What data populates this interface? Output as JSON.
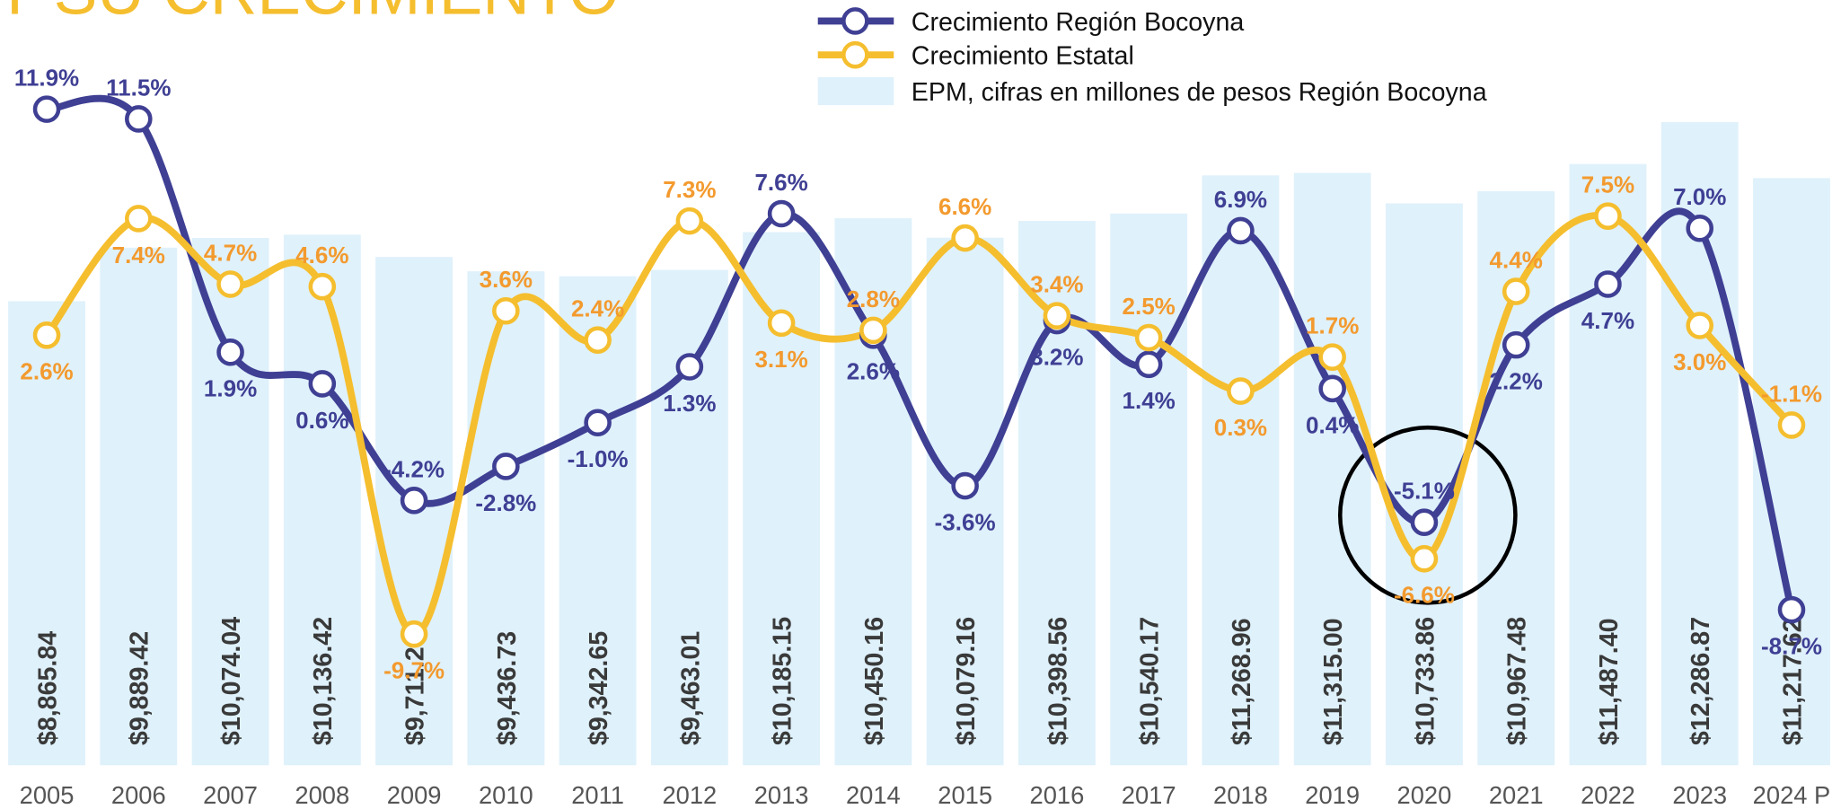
{
  "chart_data": {
    "type": "combo",
    "title": "Y SU CRECIMIENTO",
    "categories": [
      "2005",
      "2006",
      "2007",
      "2008",
      "2009",
      "2010",
      "2011",
      "2012",
      "2013",
      "2014",
      "2015",
      "2016",
      "2017",
      "2018",
      "2019",
      "2020",
      "2021",
      "2022",
      "2023",
      "2024 P"
    ],
    "series": [
      {
        "name": "Crecimiento Región Bocoyna",
        "type": "line",
        "color": "#3f3f94",
        "label_color": "#3f3f94",
        "values": [
          11.9,
          11.5,
          1.9,
          0.6,
          -4.2,
          -2.8,
          -1.0,
          1.3,
          7.6,
          2.6,
          -3.6,
          3.2,
          1.4,
          6.9,
          0.4,
          -5.1,
          2.2,
          4.7,
          7.0,
          -8.7
        ],
        "value_labels": [
          "11.9%",
          "11.5%",
          "1.9%",
          "0.6%",
          "-4.2%",
          "-2.8%",
          "-1.0%",
          "1.3%",
          "7.6%",
          "2.6%",
          "-3.6%",
          "3.2%",
          "1.4%",
          "6.9%",
          "0.4%",
          "-5.1%",
          "2.2%",
          "4.7%",
          "7.0%",
          "-8.7%"
        ]
      },
      {
        "name": "Crecimiento Estatal",
        "type": "line",
        "color": "#f5be2e",
        "label_color": "#f39a2e",
        "values": [
          2.6,
          7.4,
          4.7,
          4.6,
          -9.7,
          3.6,
          2.4,
          7.3,
          3.1,
          2.8,
          6.6,
          3.4,
          2.5,
          0.3,
          1.7,
          -6.6,
          4.4,
          7.5,
          3.0,
          -1.1
        ],
        "value_labels": [
          "2.6%",
          "7.4%",
          "4.7%",
          "4.6%",
          "-9.7%",
          "3.6%",
          "2.4%",
          "7.3%",
          "3.1%",
          "2.8%",
          "6.6%",
          "3.4%",
          "2.5%",
          "0.3%",
          "1.7%",
          "-6.6%",
          "4.4%",
          "7.5%",
          "3.0%",
          "-1.1%"
        ]
      },
      {
        "name": "EPM, cifras en millones de pesos Región Bocoyna",
        "type": "bar",
        "color": "#dff1fb",
        "label_color": "#3a3a3a",
        "values": [
          8865.84,
          9889.42,
          10074.04,
          10136.42,
          9711.2,
          9436.73,
          9342.65,
          9463.01,
          10185.15,
          10450.16,
          10079.16,
          10398.56,
          10540.17,
          11268.96,
          11315.0,
          10733.86,
          10967.48,
          11487.4,
          12286.87,
          11217.62
        ],
        "value_labels": [
          "$8,865.84",
          "$9,889.42",
          "$10,074.04",
          "$10,136.42",
          "$9,711.20",
          "$9,436.73",
          "$9,342.65",
          "$9,463.01",
          "$10,185.15",
          "$10,450.16",
          "$10,079.16",
          "$10,398.56",
          "$10,540.17",
          "$11,268.96",
          "$11,315.00",
          "$10,733.86",
          "$10,967.48",
          "$11,487.40",
          "$12,286.87",
          "$11,217.62"
        ]
      }
    ],
    "legend": "top-right"
  }
}
